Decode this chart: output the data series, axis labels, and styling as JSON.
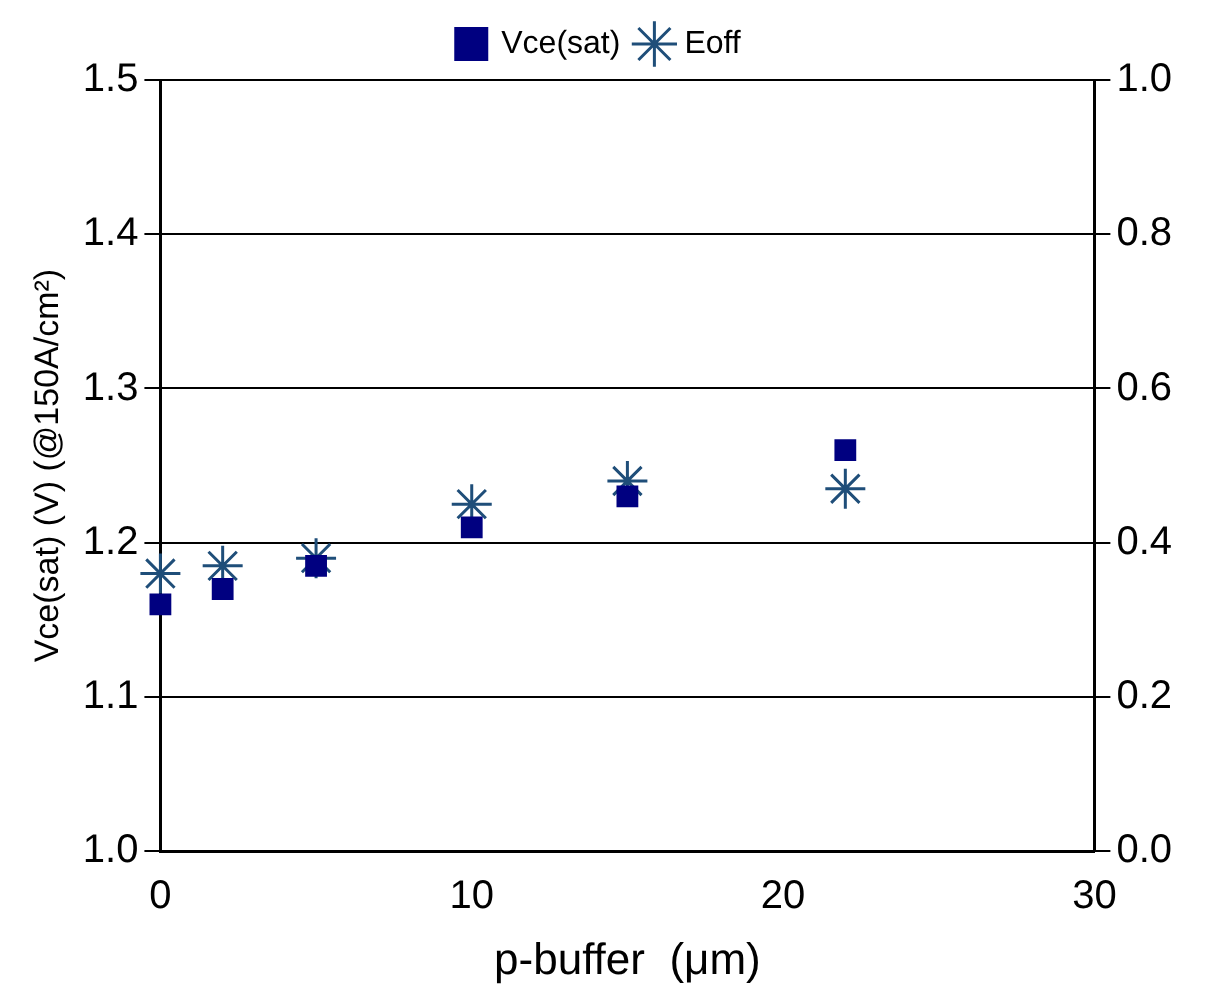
{
  "chart_data": {
    "type": "scatter",
    "xlabel": "p-buffer  (μm)",
    "ylabel": "Vce(sat) (V) (@150A/cm²)",
    "x": [
      0,
      2,
      5,
      10,
      15,
      22
    ],
    "series": [
      {
        "name": "Vce(sat)",
        "color": "#000080",
        "values": [
          1.16,
          1.17,
          1.185,
          1.21,
          1.23,
          1.26
        ],
        "marker": "square"
      },
      {
        "name": "Eoff",
        "color": "#1f4e79",
        "values": [
          0.36,
          0.37,
          0.38,
          0.45,
          0.48,
          0.47
        ],
        "marker": "cross",
        "axis": "y2"
      }
    ],
    "xlim": [
      0,
      30
    ],
    "xticks": [
      0,
      10,
      20,
      30
    ],
    "ylim": [
      1.0,
      1.5
    ],
    "yticks": [
      {
        "value": 1,
        "label": "1.0"
      },
      1.1,
      1.2,
      1.3,
      1.4,
      1.5
    ],
    "y2lim": [
      0.0,
      1.0
    ],
    "y2ticks": [
      {
        "value": 0,
        "label": "0.0"
      },
      0.2,
      0.4,
      0.6,
      0.8,
      {
        "value": 1,
        "label": "1.0"
      }
    ],
    "grid": "y",
    "legend": "top"
  }
}
